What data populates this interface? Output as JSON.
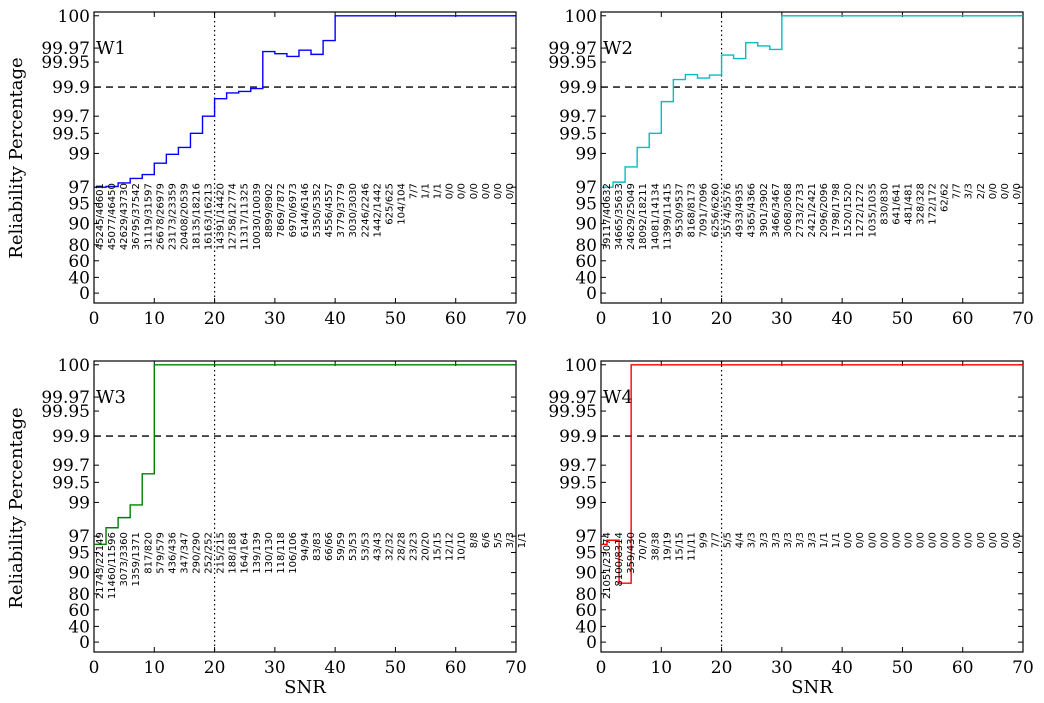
{
  "figure": {
    "ylabel": "Reliability Percentage",
    "xlabel": "SNR"
  },
  "chart_data": [
    {
      "type": "line",
      "title": "W1",
      "color": "#0000ff",
      "xlim": [
        0,
        70
      ],
      "x_ticks": [
        0,
        10,
        20,
        30,
        40,
        50,
        60,
        70
      ],
      "y_ticks": [
        "0",
        "40",
        "60",
        "80",
        "90",
        "95",
        "97",
        "99",
        "99.5",
        "99.7",
        "99.9",
        "99.95",
        "99.97",
        "100"
      ],
      "reference_lines": {
        "x_dotted": 20,
        "y_dashed": "99.9"
      },
      "x": [
        0,
        2,
        4,
        6,
        8,
        10,
        12,
        14,
        16,
        18,
        20,
        22,
        24,
        26,
        28,
        30,
        32,
        34,
        36,
        38,
        40,
        42,
        44,
        46,
        48,
        50,
        52,
        54,
        56,
        58,
        60,
        62,
        64,
        66,
        68,
        70
      ],
      "y": [
        97.0,
        97.04,
        97.25,
        97.52,
        97.75,
        98.42,
        98.95,
        99.15,
        99.5,
        99.7,
        99.82,
        99.86,
        99.87,
        99.89,
        99.965,
        99.962,
        99.958,
        99.967,
        99.961,
        99.977,
        100,
        100,
        100,
        100,
        100,
        100,
        100,
        100,
        100,
        100,
        100,
        100,
        100,
        100,
        100,
        100
      ],
      "count_labels": [
        "45245/46601",
        "45077/46450",
        "42629/43730",
        "36795/37542",
        "31119/31597",
        "26678/26979",
        "23173/23359",
        "20408/20539",
        "18135/18216",
        "16163/16213",
        "14391/14420",
        "12758/12774",
        "11317/11325",
        "10030/10039",
        "8899/8902",
        "7869/7872",
        "6970/6973",
        "6144/6146",
        "5350/5352",
        "4556/4557",
        "3779/3779",
        "3030/3030",
        "2246/2246",
        "1442/1442",
        "625/625",
        "104/104",
        "7/7",
        "1/1",
        "1/1",
        "0/0",
        "0/0",
        "0/0",
        "0/0",
        "0/0",
        "0/0"
      ]
    },
    {
      "type": "line",
      "title": "W2",
      "color": "#00bfbf",
      "xlim": [
        0,
        70
      ],
      "x_ticks": [
        0,
        10,
        20,
        30,
        40,
        50,
        60,
        70
      ],
      "y_ticks": [
        "0",
        "40",
        "60",
        "80",
        "90",
        "95",
        "97",
        "99",
        "99.5",
        "99.7",
        "99.9",
        "99.95",
        "99.97",
        "100"
      ],
      "reference_lines": {
        "x_dotted": 20,
        "y_dashed": "99.9"
      },
      "x": [
        0,
        2,
        4,
        6,
        8,
        10,
        12,
        14,
        16,
        18,
        20,
        22,
        24,
        26,
        28,
        30,
        32,
        34,
        36,
        38,
        40,
        42,
        44,
        46,
        48,
        50,
        52,
        54,
        56,
        58,
        60,
        62,
        64,
        66,
        68,
        70
      ],
      "y": [
        97.0,
        97.3,
        98.2,
        99.15,
        99.5,
        99.8,
        99.915,
        99.925,
        99.918,
        99.924,
        99.96,
        99.955,
        99.975,
        99.972,
        99.968,
        100,
        100,
        100,
        100,
        100,
        100,
        100,
        100,
        100,
        100,
        100,
        100,
        100,
        100,
        100,
        100,
        100,
        100,
        100,
        100,
        100
      ],
      "count_labels": [
        "39117/40632",
        "34665/35633",
        "24629/25049",
        "18092/18211",
        "14081/14134",
        "11399/11415",
        "9530/9537",
        "8168/8173",
        "7091/7096",
        "6256/6260",
        "5574/5576",
        "4933/4935",
        "4365/4366",
        "3901/3902",
        "3466/3467",
        "3068/3068",
        "2733/2733",
        "2421/2421",
        "2096/2096",
        "1798/1798",
        "1520/1520",
        "1272/1272",
        "1035/1035",
        "830/830",
        "641/641",
        "481/481",
        "328/328",
        "172/172",
        "62/62",
        "7/7",
        "3/3",
        "2/2",
        "0/0",
        "0/0",
        "0/0"
      ]
    },
    {
      "type": "line",
      "title": "W3",
      "color": "#008000",
      "xlim": [
        0,
        70
      ],
      "x_ticks": [
        0,
        10,
        20,
        30,
        40,
        50,
        60,
        70
      ],
      "y_ticks": [
        "0",
        "40",
        "60",
        "80",
        "90",
        "95",
        "97",
        "99",
        "99.5",
        "99.7",
        "99.9",
        "99.95",
        "99.97",
        "100"
      ],
      "reference_lines": {
        "x_dotted": 20,
        "y_dashed": "99.9"
      },
      "x": [
        0,
        2,
        4,
        6,
        8,
        10,
        12,
        14,
        16,
        18,
        20,
        22,
        24,
        26,
        28,
        30,
        32,
        34,
        36,
        38,
        40,
        42,
        44,
        46,
        48,
        50,
        52,
        54,
        56,
        58,
        60,
        62,
        64,
        66,
        68,
        70
      ],
      "y": [
        96,
        97.5,
        98.1,
        98.85,
        99.6,
        100,
        100,
        100,
        100,
        100,
        100,
        100,
        100,
        100,
        100,
        100,
        100,
        100,
        100,
        100,
        100,
        100,
        100,
        100,
        100,
        100,
        100,
        100,
        100,
        100,
        100,
        100,
        100,
        100,
        100,
        100
      ],
      "count_labels": [
        "21743/22149",
        "11460/11596",
        "3073/3360",
        "1359/1371",
        "817/820",
        "579/579",
        "436/436",
        "347/347",
        "290/290",
        "252/252",
        "215/215",
        "188/188",
        "164/164",
        "139/139",
        "130/130",
        "118/118",
        "106/106",
        "94/94",
        "83/83",
        "66/66",
        "59/59",
        "53/53",
        "53/53",
        "43/43",
        "32/32",
        "28/28",
        "23/23",
        "20/20",
        "15/15",
        "12/12",
        "10/10",
        "8/8",
        "6/6",
        "5/5",
        "3/3",
        "1/1"
      ]
    },
    {
      "type": "line",
      "title": "W4",
      "color": "#ff0000",
      "xlim": [
        0,
        70
      ],
      "x_ticks": [
        0,
        10,
        20,
        30,
        40,
        50,
        60,
        70
      ],
      "y_ticks": [
        "0",
        "40",
        "60",
        "80",
        "90",
        "95",
        "97",
        "99",
        "99.5",
        "99.7",
        "99.9",
        "99.95",
        "99.97",
        "100"
      ],
      "reference_lines": {
        "x_dotted": 20,
        "y_dashed": "99.9"
      },
      "x": [
        0,
        1,
        3,
        5,
        70
      ],
      "y": [
        96,
        96.5,
        85,
        100,
        100
      ],
      "count_labels": [
        "21051/23074",
        "8100/8314",
        "359/430",
        "70/70",
        "38/38",
        "19/19",
        "15/15",
        "11/11",
        "9/9",
        "7/7",
        "5/5",
        "4/4",
        "3/3",
        "3/3",
        "3/3",
        "3/3",
        "3/3",
        "3/3",
        "1/1",
        "1/1",
        "0/0",
        "0/0",
        "0/0",
        "0/0",
        "0/0",
        "0/0",
        "0/0",
        "0/0",
        "0/0",
        "0/0",
        "0/0",
        "0/0",
        "0/0",
        "0/0",
        "0/0"
      ]
    }
  ]
}
